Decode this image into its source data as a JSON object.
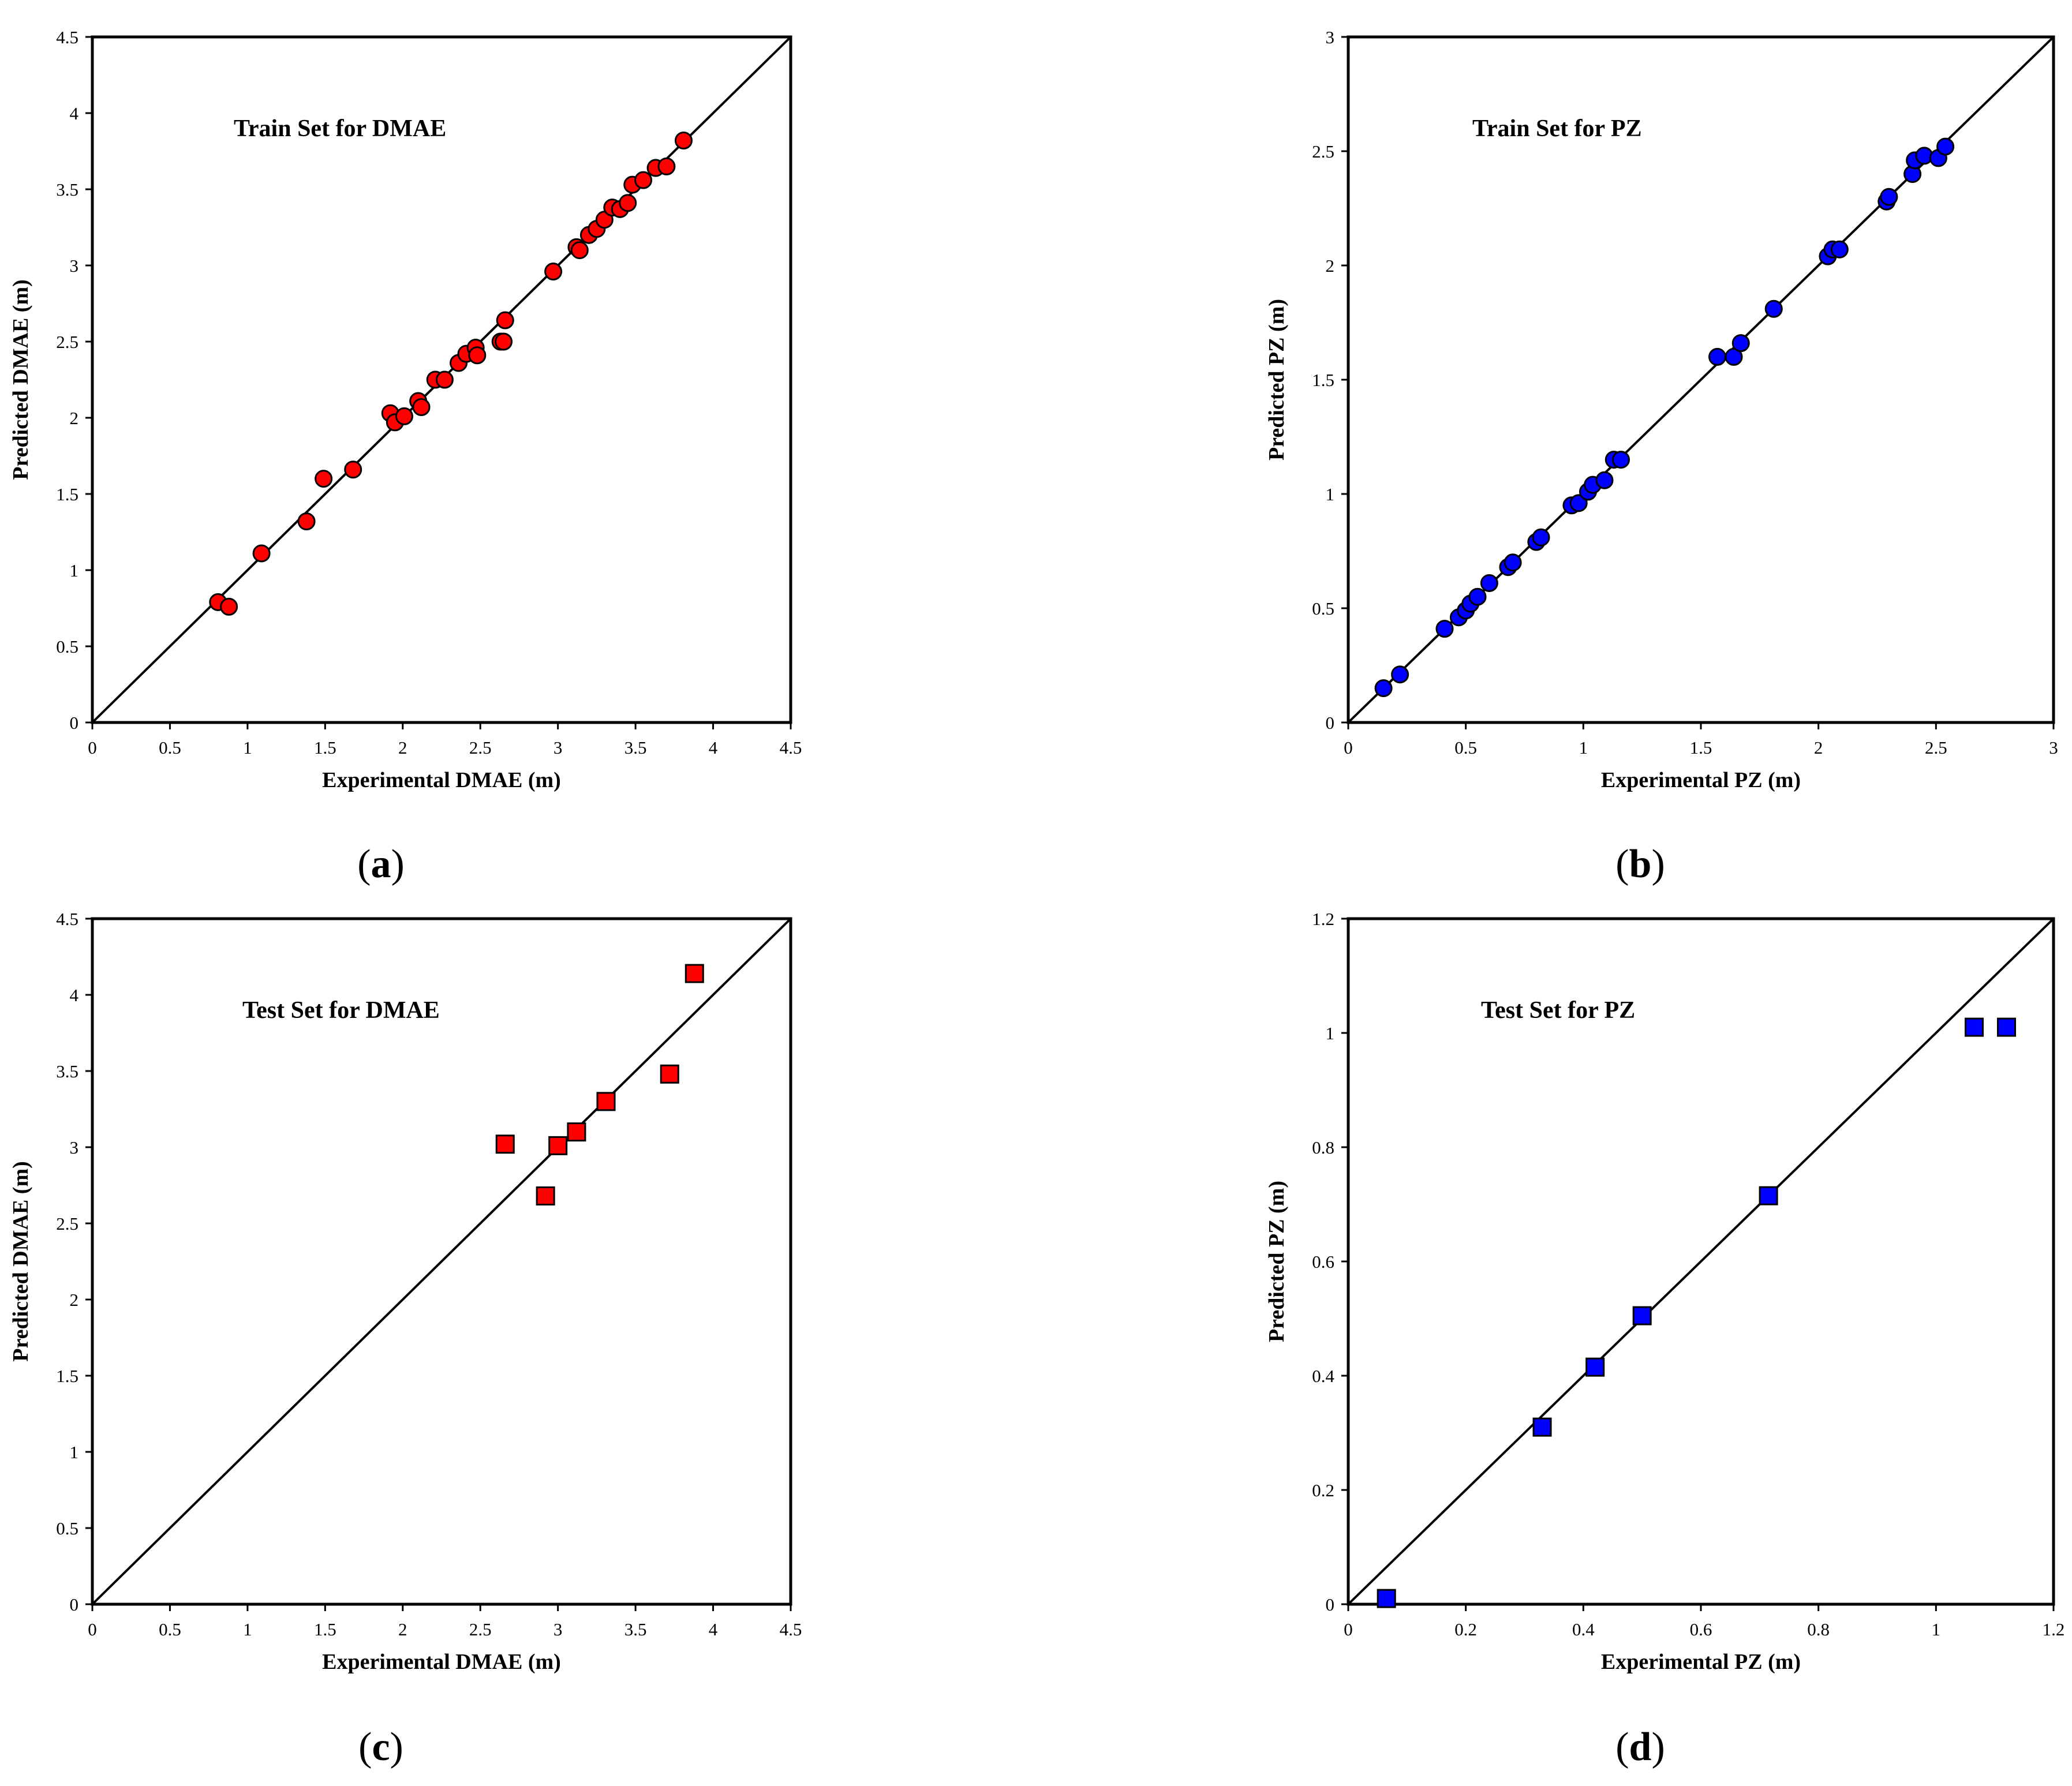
{
  "chart_data": [
    {
      "id": "a",
      "type": "scatter",
      "caption": "a",
      "annotation": "Train Set for DMAE",
      "xlabel": "Experimental  DMAE  (m)",
      "ylabel": "Predicted DMAE  (m)",
      "xlim": [
        0,
        4.5
      ],
      "ylim": [
        0,
        4.5
      ],
      "xticks": [
        0,
        0.5,
        1,
        1.5,
        2,
        2.5,
        3,
        3.5,
        4,
        4.5
      ],
      "yticks": [
        0,
        0.5,
        1,
        1.5,
        2,
        2.5,
        3,
        3.5,
        4,
        4.5
      ],
      "grid": false,
      "reference_line": "y = x",
      "marker": "circle",
      "color": "#ff0000",
      "points": [
        [
          0.81,
          0.79
        ],
        [
          0.88,
          0.76
        ],
        [
          1.09,
          1.11
        ],
        [
          1.38,
          1.32
        ],
        [
          1.49,
          1.6
        ],
        [
          1.68,
          1.66
        ],
        [
          1.92,
          2.03
        ],
        [
          1.95,
          1.97
        ],
        [
          2.01,
          2.01
        ],
        [
          2.1,
          2.11
        ],
        [
          2.12,
          2.07
        ],
        [
          2.21,
          2.25
        ],
        [
          2.27,
          2.25
        ],
        [
          2.36,
          2.36
        ],
        [
          2.41,
          2.42
        ],
        [
          2.47,
          2.46
        ],
        [
          2.48,
          2.41
        ],
        [
          2.63,
          2.5
        ],
        [
          2.65,
          2.5
        ],
        [
          2.66,
          2.64
        ],
        [
          2.97,
          2.96
        ],
        [
          3.12,
          3.12
        ],
        [
          3.14,
          3.1
        ],
        [
          3.2,
          3.2
        ],
        [
          3.25,
          3.24
        ],
        [
          3.3,
          3.3
        ],
        [
          3.35,
          3.38
        ],
        [
          3.4,
          3.37
        ],
        [
          3.45,
          3.41
        ],
        [
          3.48,
          3.53
        ],
        [
          3.55,
          3.56
        ],
        [
          3.63,
          3.64
        ],
        [
          3.7,
          3.65
        ],
        [
          3.81,
          3.82
        ]
      ]
    },
    {
      "id": "b",
      "type": "scatter",
      "caption": "b",
      "annotation": "Train Set for PZ",
      "xlabel": "Experimental  PZ (m)",
      "ylabel": "Predicted PZ (m)",
      "xlim": [
        0,
        3
      ],
      "ylim": [
        0,
        3
      ],
      "xticks": [
        0,
        0.5,
        1,
        1.5,
        2,
        2.5,
        3
      ],
      "yticks": [
        0,
        0.5,
        1,
        1.5,
        2,
        2.5,
        3
      ],
      "grid": false,
      "reference_line": "y = x",
      "marker": "circle",
      "color": "#0000ff",
      "points": [
        [
          0.15,
          0.15
        ],
        [
          0.22,
          0.21
        ],
        [
          0.41,
          0.41
        ],
        [
          0.47,
          0.46
        ],
        [
          0.5,
          0.49
        ],
        [
          0.52,
          0.52
        ],
        [
          0.55,
          0.55
        ],
        [
          0.6,
          0.61
        ],
        [
          0.68,
          0.68
        ],
        [
          0.7,
          0.7
        ],
        [
          0.8,
          0.79
        ],
        [
          0.82,
          0.81
        ],
        [
          0.95,
          0.95
        ],
        [
          0.98,
          0.96
        ],
        [
          1.02,
          1.01
        ],
        [
          1.04,
          1.04
        ],
        [
          1.09,
          1.06
        ],
        [
          1.13,
          1.15
        ],
        [
          1.16,
          1.15
        ],
        [
          1.57,
          1.6
        ],
        [
          1.64,
          1.6
        ],
        [
          1.67,
          1.66
        ],
        [
          1.81,
          1.81
        ],
        [
          2.04,
          2.04
        ],
        [
          2.06,
          2.07
        ],
        [
          2.09,
          2.07
        ],
        [
          2.29,
          2.28
        ],
        [
          2.3,
          2.3
        ],
        [
          2.4,
          2.4
        ],
        [
          2.41,
          2.46
        ],
        [
          2.45,
          2.48
        ],
        [
          2.51,
          2.47
        ],
        [
          2.54,
          2.52
        ]
      ]
    },
    {
      "id": "c",
      "type": "scatter",
      "caption": "c",
      "annotation": "Test Set for DMAE",
      "xlabel": "Experimental  DMAE  (m)",
      "ylabel": "Predicted DMAE  (m)",
      "xlim": [
        0,
        4.5
      ],
      "ylim": [
        0,
        4.5
      ],
      "xticks": [
        0,
        0.5,
        1,
        1.5,
        2,
        2.5,
        3,
        3.5,
        4,
        4.5
      ],
      "yticks": [
        0,
        0.5,
        1,
        1.5,
        2,
        2.5,
        3,
        3.5,
        4,
        4.5
      ],
      "grid": false,
      "reference_line": "y = x",
      "marker": "square",
      "color": "#ff0000",
      "points": [
        [
          2.66,
          3.02
        ],
        [
          2.92,
          2.68
        ],
        [
          3.0,
          3.01
        ],
        [
          3.12,
          3.1
        ],
        [
          3.31,
          3.3
        ],
        [
          3.72,
          3.48
        ],
        [
          3.88,
          4.14
        ]
      ]
    },
    {
      "id": "d",
      "type": "scatter",
      "caption": "d",
      "annotation": "Test Set for PZ",
      "xlabel": "Experimental PZ (m)",
      "ylabel": "Predicted PZ (m)",
      "xlim": [
        0,
        1.2
      ],
      "ylim": [
        0,
        1.2
      ],
      "xticks": [
        0,
        0.2,
        0.4,
        0.6,
        0.8,
        1,
        1.2
      ],
      "yticks": [
        0,
        0.2,
        0.4,
        0.6,
        0.8,
        1,
        1.2
      ],
      "grid": false,
      "reference_line": "y = x",
      "marker": "square",
      "color": "#0000ff",
      "points": [
        [
          0.065,
          0.01
        ],
        [
          0.33,
          0.31
        ],
        [
          0.42,
          0.415
        ],
        [
          0.5,
          0.505
        ],
        [
          0.715,
          0.715
        ],
        [
          1.065,
          1.01
        ],
        [
          1.12,
          1.01
        ]
      ]
    }
  ]
}
